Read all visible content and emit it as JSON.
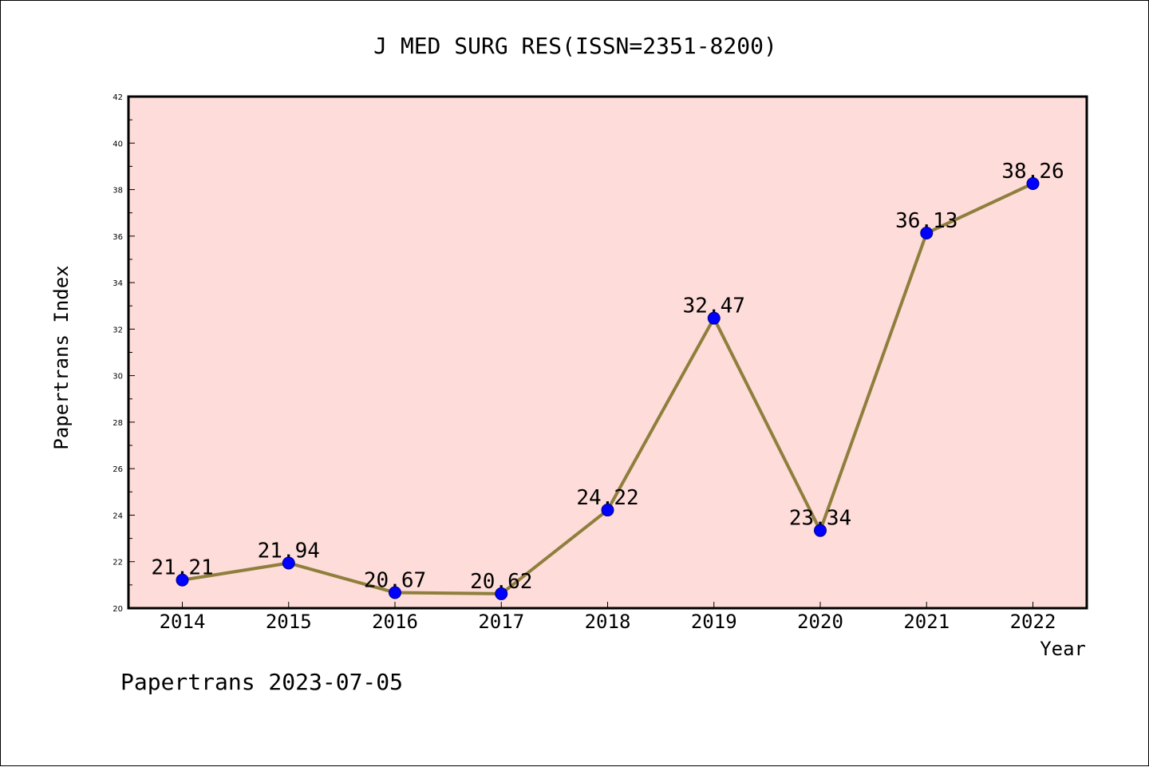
{
  "chart_data": {
    "type": "line",
    "title": "J MED SURG RES(ISSN=2351-8200)",
    "xlabel": "Year",
    "ylabel": "Papertrans Index",
    "categories": [
      "2014",
      "2015",
      "2016",
      "2017",
      "2018",
      "2019",
      "2020",
      "2021",
      "2022"
    ],
    "series": [
      {
        "values": [
          21.21,
          21.94,
          20.67,
          20.62,
          24.22,
          32.47,
          23.34,
          36.13,
          38.26
        ],
        "labels": [
          "21.21",
          "21.94",
          "20.67",
          "20.62",
          "24.22",
          "32.47",
          "23.34",
          "36.13",
          "38.26"
        ]
      }
    ],
    "ylim": [
      20,
      42
    ],
    "yticks": [
      "20",
      "22",
      "24",
      "26",
      "28",
      "30",
      "32",
      "34",
      "36",
      "38",
      "40",
      "42"
    ],
    "grid": false,
    "colors": {
      "plot_background": "#fddcd9",
      "line": "#8f7e3c",
      "marker_fill": "#0000ff",
      "marker_stroke": "#000080"
    }
  },
  "footer": "Papertrans 2023-07-05"
}
